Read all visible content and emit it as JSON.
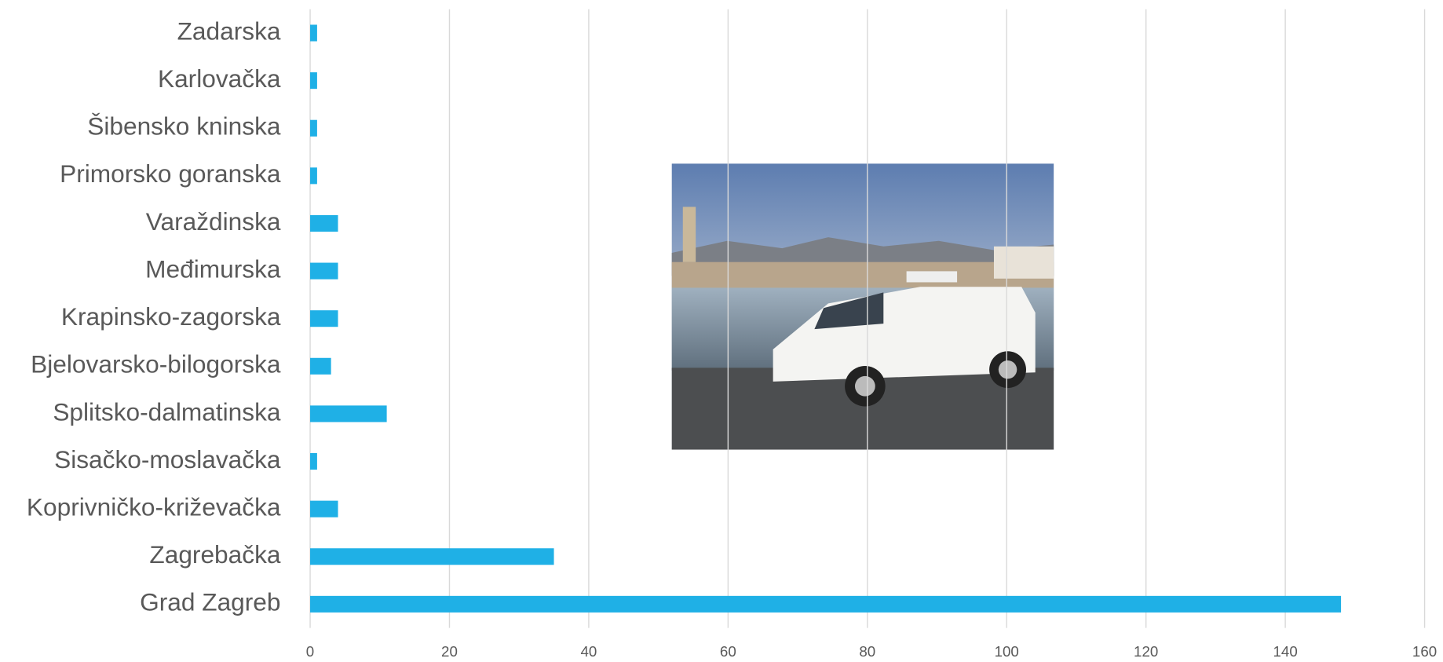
{
  "chart_data": {
    "type": "hbar",
    "categories": [
      "Zadarska",
      "Karlovačka",
      "Šibensko kninska",
      "Primorsko goranska",
      "Varaždinska",
      "Međimurska",
      "Krapinsko-zagorska",
      "Bjelovarsko-bilogorska",
      "Splitsko-dalmatinska",
      "Sisačko-moslavačka",
      "Koprivničko-križevačka",
      "Zagrebačka",
      "Grad Zagreb"
    ],
    "values": [
      1,
      1,
      1,
      1,
      4,
      4,
      4,
      3,
      11,
      1,
      4,
      35,
      148
    ],
    "color": "#1fb0e6",
    "xlim": [
      0,
      160
    ],
    "xticks": [
      0,
      20,
      40,
      60,
      80,
      100,
      120,
      140,
      160
    ],
    "grid": true
  }
}
